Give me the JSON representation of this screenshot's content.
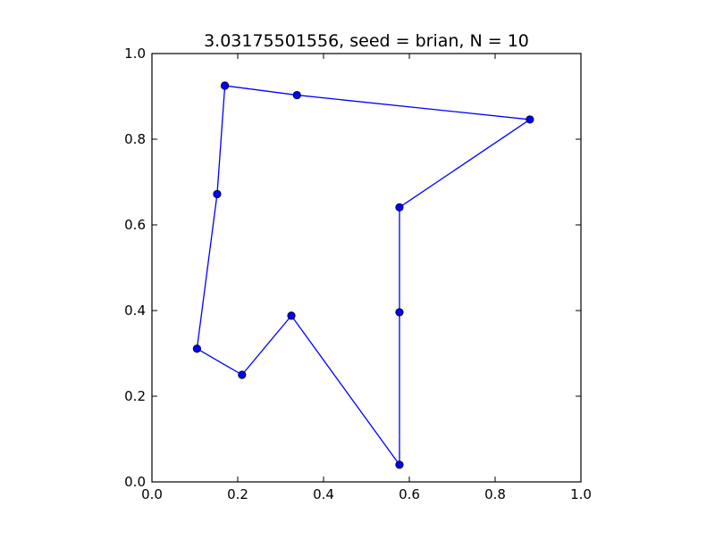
{
  "chart_data": {
    "type": "line",
    "title": "3.03175501556, seed = brian, N = 10",
    "xlabel": "",
    "ylabel": "",
    "xlim": [
      0,
      1
    ],
    "ylim": [
      0,
      1
    ],
    "grid": false,
    "marker": "circle",
    "xticks": [
      "0.0",
      "0.2",
      "0.4",
      "0.6",
      "0.8",
      "1.0"
    ],
    "yticks": [
      "0.0",
      "0.2",
      "0.4",
      "0.6",
      "0.8",
      "1.0"
    ],
    "series": [
      {
        "color": "#0000ff",
        "marker_color": "#0000ff",
        "points": [
          {
            "x": 0.17,
            "y": 0.925
          },
          {
            "x": 0.338,
            "y": 0.903
          },
          {
            "x": 0.881,
            "y": 0.846
          },
          {
            "x": 0.577,
            "y": 0.641
          },
          {
            "x": 0.577,
            "y": 0.396
          },
          {
            "x": 0.577,
            "y": 0.04
          },
          {
            "x": 0.325,
            "y": 0.388
          },
          {
            "x": 0.21,
            "y": 0.25
          },
          {
            "x": 0.105,
            "y": 0.311
          },
          {
            "x": 0.152,
            "y": 0.672
          },
          {
            "x": 0.17,
            "y": 0.925
          }
        ]
      }
    ]
  }
}
